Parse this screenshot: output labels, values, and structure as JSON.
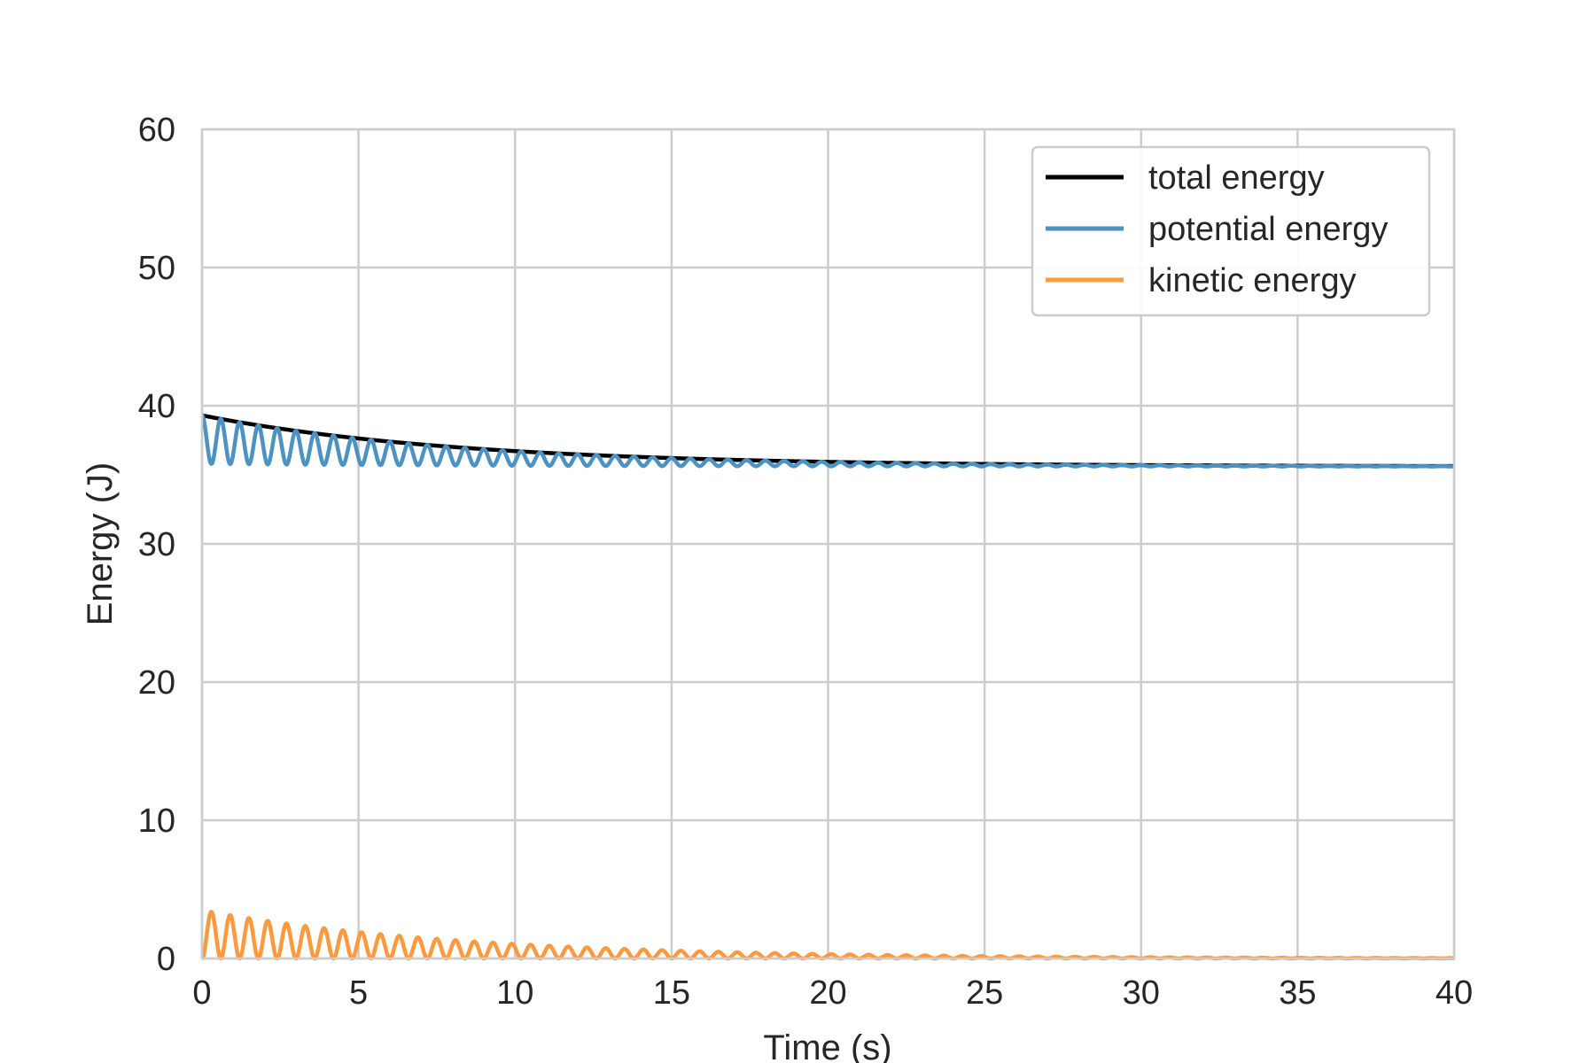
{
  "chart_data": {
    "type": "line",
    "xlabel": "Time (s)",
    "ylabel": "Energy (J)",
    "xlim": [
      0,
      40
    ],
    "ylim": [
      0,
      60
    ],
    "xticks": [
      0,
      5,
      10,
      15,
      20,
      25,
      30,
      35,
      40
    ],
    "yticks": [
      0,
      10,
      20,
      30,
      40,
      50,
      60
    ],
    "grid": true,
    "legend_position": "top-right",
    "series": [
      {
        "name": "total energy",
        "color": "#000000",
        "kind": "exponential_decay",
        "start": 39.3,
        "end": 35.6,
        "decay_rate": 0.12
      },
      {
        "name": "potential energy",
        "color": "#4c92c3",
        "kind": "damped_oscillation_below_total",
        "final": 35.6,
        "initial_amplitude": 3.5,
        "decay_rate": 0.12,
        "period": 0.6
      },
      {
        "name": "kinetic energy",
        "color": "#ff993e",
        "kind": "damped_oscillation",
        "final": 0,
        "initial_amplitude": 3.5,
        "decay_rate": 0.12,
        "period": 0.6
      }
    ]
  }
}
